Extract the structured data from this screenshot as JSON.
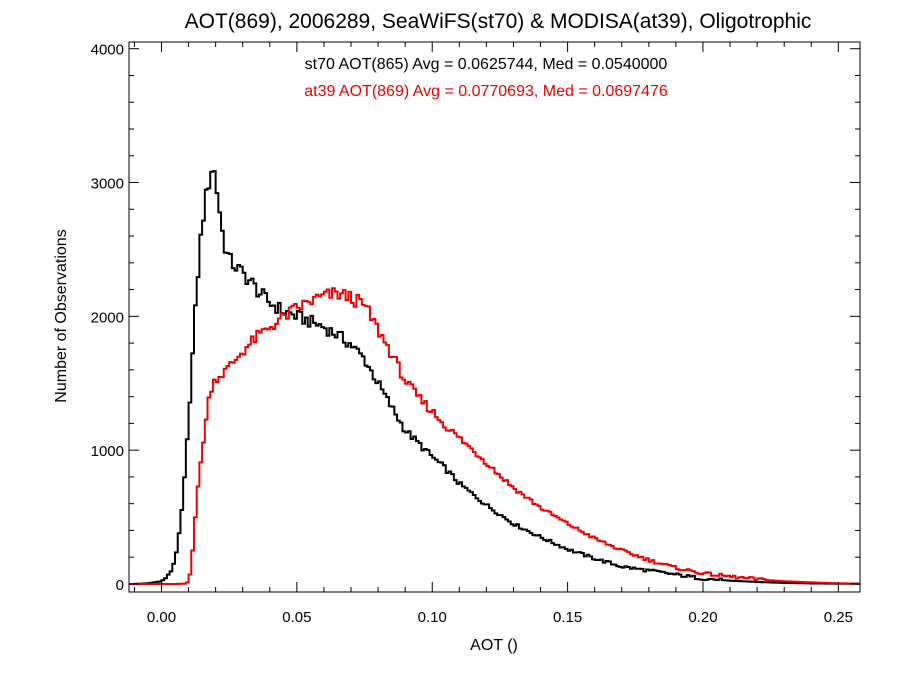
{
  "chart_data": {
    "type": "histogram",
    "title": "AOT(869), 2006289, SeaWiFS(st70) & MODISA(at39), Oligotrophic",
    "xlabel": "AOT ()",
    "ylabel": "Number of Observations",
    "xlim": [
      -0.012,
      0.258
    ],
    "ylim": [
      -60,
      4050
    ],
    "xticks": [
      0.0,
      0.05,
      0.1,
      0.15,
      0.2,
      0.25
    ],
    "xtick_labels": [
      "0.00",
      "0.05",
      "0.10",
      "0.15",
      "0.20",
      "0.25"
    ],
    "yticks": [
      0,
      1000,
      2000,
      3000,
      4000
    ],
    "ytick_labels": [
      "0",
      "1000",
      "2000",
      "3000",
      "4000"
    ],
    "grid": false,
    "annotations": [
      {
        "text": "st70 AOT(865) Avg = 0.0625744, Med = 0.0540000",
        "color": "#000000"
      },
      {
        "text": "at39 AOT(869) Avg = 0.0770693, Med = 0.0697476",
        "color": "#ee0000"
      }
    ],
    "series": [
      {
        "color": "#000000",
        "x": [
          -0.01,
          -0.005,
          0.0,
          0.003,
          0.005,
          0.007,
          0.009,
          0.011,
          0.013,
          0.015,
          0.017,
          0.018,
          0.019,
          0.02,
          0.021,
          0.022,
          0.023,
          0.025,
          0.027,
          0.03,
          0.033,
          0.036,
          0.04,
          0.045,
          0.05,
          0.055,
          0.06,
          0.065,
          0.07,
          0.075,
          0.08,
          0.085,
          0.09,
          0.095,
          0.1,
          0.105,
          0.11,
          0.115,
          0.12,
          0.125,
          0.13,
          0.14,
          0.15,
          0.16,
          0.17,
          0.18,
          0.19,
          0.2,
          0.21,
          0.22,
          0.23,
          0.24,
          0.25,
          0.258
        ],
        "y": [
          0,
          5,
          20,
          70,
          180,
          430,
          900,
          1550,
          2200,
          2700,
          2950,
          3060,
          3150,
          3000,
          2880,
          2700,
          2560,
          2420,
          2380,
          2320,
          2260,
          2180,
          2100,
          2040,
          2000,
          1960,
          1920,
          1860,
          1790,
          1680,
          1500,
          1320,
          1150,
          1050,
          950,
          860,
          750,
          670,
          590,
          520,
          450,
          350,
          260,
          190,
          130,
          100,
          70,
          40,
          25,
          15,
          8,
          4,
          2,
          1
        ]
      },
      {
        "color": "#ee0000",
        "x": [
          -0.01,
          0.005,
          0.009,
          0.01,
          0.011,
          0.013,
          0.015,
          0.017,
          0.018,
          0.02,
          0.022,
          0.025,
          0.03,
          0.035,
          0.04,
          0.045,
          0.05,
          0.055,
          0.06,
          0.065,
          0.07,
          0.075,
          0.08,
          0.085,
          0.09,
          0.095,
          0.1,
          0.105,
          0.11,
          0.115,
          0.12,
          0.125,
          0.13,
          0.14,
          0.15,
          0.16,
          0.17,
          0.18,
          0.19,
          0.2,
          0.21,
          0.22,
          0.23,
          0.24,
          0.25,
          0.258
        ],
        "y": [
          0,
          0,
          2,
          20,
          140,
          620,
          1000,
          1300,
          1450,
          1540,
          1560,
          1620,
          1740,
          1840,
          1920,
          1990,
          2060,
          2110,
          2150,
          2170,
          2140,
          2080,
          1900,
          1720,
          1520,
          1390,
          1290,
          1180,
          1090,
          1000,
          910,
          810,
          720,
          570,
          450,
          340,
          250,
          180,
          120,
          80,
          55,
          35,
          20,
          12,
          5,
          2
        ]
      }
    ]
  }
}
